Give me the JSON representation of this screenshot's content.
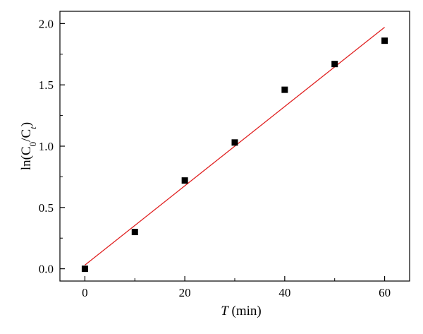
{
  "chart_data": {
    "type": "scatter",
    "xlabel_italic": "T",
    "xlabel_unit": " (min)",
    "ylabel_prefix": "ln(C",
    "ylabel_sub0": "0",
    "ylabel_mid": "/C",
    "ylabel_subt": "t",
    "ylabel_suffix": ")",
    "xlim": [
      -5,
      65
    ],
    "ylim": [
      -0.1,
      2.1
    ],
    "x_ticks": [
      0,
      20,
      40,
      60
    ],
    "x_tick_labels": [
      "0",
      "20",
      "40",
      "60"
    ],
    "y_ticks": [
      0.0,
      0.5,
      1.0,
      1.5,
      2.0
    ],
    "y_tick_labels": [
      "0.0",
      "0.5",
      "1.0",
      "1.5",
      "2.0"
    ],
    "grid": false,
    "series": [
      {
        "kind": "points",
        "marker": "square",
        "color": "#000000",
        "x": [
          0,
          10,
          20,
          30,
          40,
          50,
          60
        ],
        "y": [
          0.0,
          0.3,
          0.72,
          1.03,
          1.46,
          1.67,
          1.86
        ]
      },
      {
        "kind": "fit-line",
        "color": "#e02020",
        "x": [
          0,
          60
        ],
        "y": [
          0.03,
          1.97
        ]
      }
    ]
  }
}
